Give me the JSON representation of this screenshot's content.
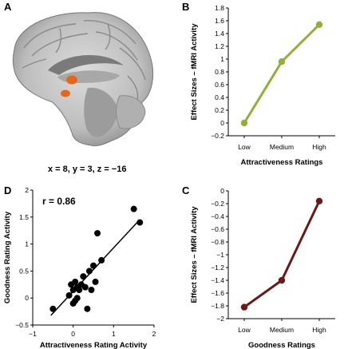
{
  "panels": {
    "A": {
      "letter": "A",
      "coords": "x = 8, y = 3, z = −16",
      "highlight_color": "#e8661a"
    },
    "B": {
      "letter": "B"
    },
    "C": {
      "letter": "C"
    },
    "D": {
      "letter": "D",
      "r_text": "r = 0.86"
    }
  },
  "chart_data": [
    {
      "panel": "B",
      "type": "line",
      "categories": [
        "Low",
        "Medium",
        "High"
      ],
      "series": [
        {
          "values": [
            0.0,
            0.96,
            1.54
          ],
          "color": "#8fb13a"
        }
      ],
      "xlabel": "Attractiveness Ratings",
      "ylabel": "Effect Sizes – fMRI Activity",
      "ylim": [
        -0.2,
        1.8
      ],
      "yticks": [
        -0.2,
        0,
        0.2,
        0.4,
        0.6,
        0.8,
        1,
        1.2,
        1.4,
        1.6,
        1.8
      ],
      "grid": false
    },
    {
      "panel": "C",
      "type": "line",
      "categories": [
        "Low",
        "Medium",
        "High"
      ],
      "series": [
        {
          "values": [
            -1.82,
            -1.4,
            -0.16
          ],
          "color": "#6a1a16"
        }
      ],
      "xlabel": "Goodness Ratings",
      "ylabel": "Effect Sizes – fMRI Activity",
      "ylim": [
        -2,
        0
      ],
      "yticks": [
        -2,
        -1.8,
        -1.6,
        -1.4,
        -1.2,
        -1,
        -0.8,
        -0.6,
        -0.4,
        -0.2,
        0
      ],
      "grid": false
    },
    {
      "panel": "D",
      "type": "scatter",
      "x": [
        -0.5,
        -0.1,
        -0.05,
        0.0,
        0.0,
        0.05,
        0.05,
        0.1,
        0.1,
        0.15,
        0.2,
        0.25,
        0.3,
        0.35,
        0.4,
        0.45,
        0.5,
        0.55,
        0.6,
        0.7,
        1.5,
        1.65
      ],
      "y": [
        -0.2,
        0.05,
        0.25,
        0.15,
        -0.1,
        -0.05,
        0.3,
        0.2,
        0.0,
        0.15,
        0.25,
        0.4,
        0.2,
        -0.2,
        0.5,
        0.15,
        0.6,
        0.3,
        1.2,
        0.7,
        1.65,
        1.4
      ],
      "point_color": "#000000",
      "fit_line": {
        "x": [
          -0.55,
          1.62
        ],
        "y": [
          -0.32,
          1.43
        ]
      },
      "xlabel": "Attractiveness Rating Activity",
      "ylabel": "Goodness Rating Activity",
      "xlim": [
        -1,
        2
      ],
      "ylim": [
        -0.5,
        2
      ],
      "xticks": [
        -1,
        0,
        1,
        2
      ],
      "yticks": [
        -0.5,
        0,
        0.5,
        1,
        1.5,
        2
      ],
      "annotation": "r = 0.86",
      "grid": false
    }
  ]
}
